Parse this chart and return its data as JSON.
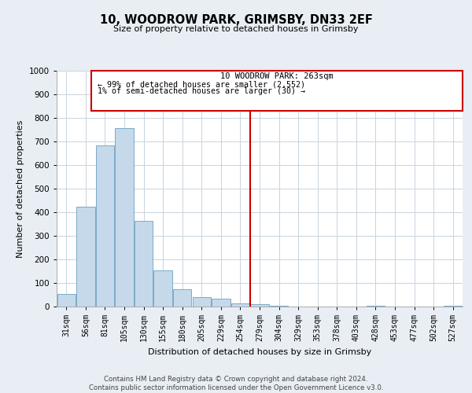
{
  "title": "10, WOODROW PARK, GRIMSBY, DN33 2EF",
  "subtitle": "Size of property relative to detached houses in Grimsby",
  "xlabel": "Distribution of detached houses by size in Grimsby",
  "ylabel": "Number of detached properties",
  "categories": [
    "31sqm",
    "56sqm",
    "81sqm",
    "105sqm",
    "130sqm",
    "155sqm",
    "180sqm",
    "205sqm",
    "229sqm",
    "254sqm",
    "279sqm",
    "304sqm",
    "329sqm",
    "353sqm",
    "378sqm",
    "403sqm",
    "428sqm",
    "453sqm",
    "477sqm",
    "502sqm",
    "527sqm"
  ],
  "values": [
    52,
    425,
    685,
    757,
    362,
    152,
    75,
    40,
    33,
    15,
    10,
    5,
    0,
    0,
    0,
    0,
    5,
    0,
    0,
    0,
    5
  ],
  "bar_color": "#c6d9ea",
  "bar_edge_color": "#7aaac8",
  "marker_label": "10 WOODROW PARK: 263sqm",
  "marker_line_color": "#cc0000",
  "annotation_line1": "← 99% of detached houses are smaller (2,552)",
  "annotation_line2": "1% of semi-detached houses are larger (30) →",
  "annotation_box_edge_color": "#cc0000",
  "ylim": [
    0,
    1000
  ],
  "yticks": [
    0,
    100,
    200,
    300,
    400,
    500,
    600,
    700,
    800,
    900,
    1000
  ],
  "footer_line1": "Contains HM Land Registry data © Crown copyright and database right 2024.",
  "footer_line2": "Contains public sector information licensed under the Open Government Licence v3.0.",
  "bg_color": "#e8eef4",
  "plot_bg_color": "#ffffff",
  "grid_color": "#c8d4de"
}
